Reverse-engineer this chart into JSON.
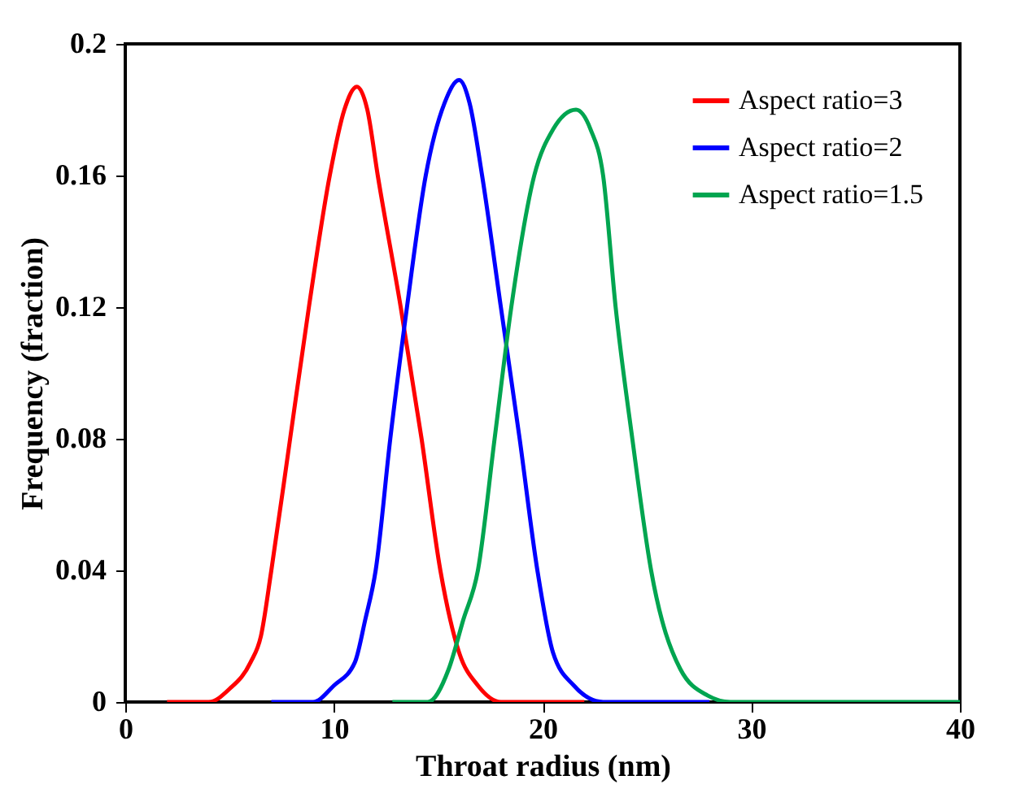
{
  "chart_data": {
    "type": "line",
    "xlabel": "Throat radius (nm)",
    "ylabel": "Frequency (fraction)",
    "xlim": [
      0,
      40
    ],
    "xticks": [
      0,
      10,
      20,
      30,
      40
    ],
    "ylim": [
      0,
      0.2
    ],
    "yticks": [
      0,
      0.04,
      0.08,
      0.12,
      0.16,
      0.2
    ],
    "grid": false,
    "legend": "top right",
    "marker": "none",
    "line_style": "solid",
    "series": [
      {
        "name": "Aspect ratio=3",
        "color": "#ff0000",
        "x": [
          2,
          4,
          5,
          6,
          6.5,
          7,
          7.9,
          8.8,
          9.8,
          10.5,
          11.1,
          11.6,
          12.1,
          13.2,
          14.2,
          15.1,
          16,
          16.9,
          18,
          22
        ],
        "values": [
          0,
          0,
          0.004,
          0.012,
          0.02,
          0.04,
          0.08,
          0.12,
          0.16,
          0.18,
          0.187,
          0.18,
          0.16,
          0.12,
          0.08,
          0.04,
          0.015,
          0.005,
          0,
          0
        ]
      },
      {
        "name": "Aspect ratio=2",
        "color": "#0000ff",
        "x": [
          7,
          9,
          10,
          11,
          11.5,
          12,
          12.7,
          13.5,
          14.4,
          15.3,
          16,
          16.5,
          17.1,
          18,
          18.9,
          19.75,
          20.5,
          21.5,
          22.9,
          28
        ],
        "values": [
          0,
          0,
          0.005,
          0.012,
          0.025,
          0.04,
          0.08,
          0.12,
          0.16,
          0.182,
          0.189,
          0.182,
          0.16,
          0.12,
          0.08,
          0.04,
          0.015,
          0.005,
          0,
          0
        ]
      },
      {
        "name": "Aspect ratio=1.5",
        "color": "#00a550",
        "x": [
          12.8,
          14.5,
          15.5,
          16.2,
          16.9,
          17.7,
          18.5,
          19.6,
          20.5,
          21.6,
          22.3,
          22.9,
          23.5,
          24.3,
          25.2,
          26.6,
          27.9,
          29,
          40
        ],
        "values": [
          0,
          0,
          0.01,
          0.025,
          0.04,
          0.08,
          0.12,
          0.16,
          0.174,
          0.18,
          0.174,
          0.16,
          0.12,
          0.08,
          0.04,
          0.01,
          0.002,
          0,
          0
        ]
      }
    ]
  }
}
